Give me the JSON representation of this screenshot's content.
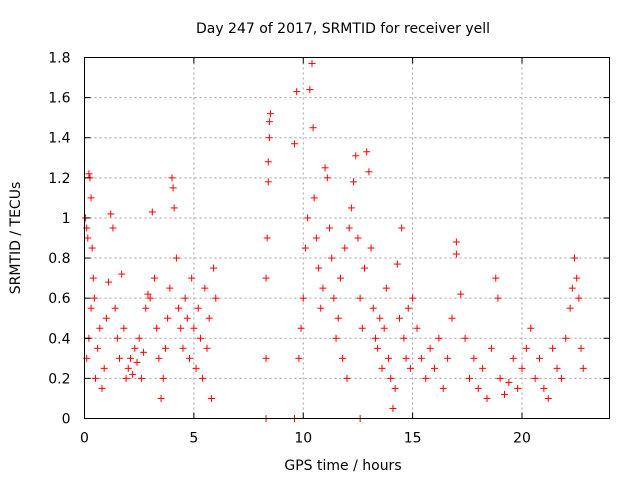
{
  "chart_data": {
    "type": "scatter",
    "title": "Day 247 of 2017, SRMTID for receiver yell",
    "xlabel": "GPS time / hours",
    "ylabel": "SRMTID / TECUs",
    "xlim": [
      0,
      24
    ],
    "ylim": [
      0,
      1.8
    ],
    "grid": true,
    "marker": "+",
    "color": "#ff0000",
    "xticks": [
      0,
      5,
      10,
      15,
      20
    ],
    "xtick_labels": [
      "0",
      "5",
      "10",
      "15",
      "20"
    ],
    "yticks": [
      0,
      0.2,
      0.4,
      0.6,
      0.8,
      1,
      1.2,
      1.4,
      1.6,
      1.8
    ],
    "ytick_labels": [
      "0",
      "0.2",
      "0.4",
      "0.6",
      "0.8",
      "1",
      "1.2",
      "1.4",
      "1.6",
      "1.8"
    ],
    "series": [
      {
        "name": "SRMTID",
        "points": [
          [
            0.05,
            1.0
          ],
          [
            0.1,
            0.95
          ],
          [
            0.15,
            0.9
          ],
          [
            0.2,
            1.22
          ],
          [
            0.25,
            1.2
          ],
          [
            0.3,
            1.1
          ],
          [
            0.35,
            0.85
          ],
          [
            0.4,
            0.7
          ],
          [
            0.45,
            0.6
          ],
          [
            0.1,
            0.3
          ],
          [
            0.2,
            0.4
          ],
          [
            0.3,
            0.55
          ],
          [
            0.5,
            0.2
          ],
          [
            0.6,
            0.35
          ],
          [
            0.7,
            0.45
          ],
          [
            0.8,
            0.15
          ],
          [
            0.9,
            0.25
          ],
          [
            1.0,
            0.5
          ],
          [
            1.1,
            0.68
          ],
          [
            1.2,
            1.02
          ],
          [
            1.3,
            0.95
          ],
          [
            1.4,
            0.55
          ],
          [
            1.5,
            0.4
          ],
          [
            1.6,
            0.3
          ],
          [
            1.7,
            0.72
          ],
          [
            1.8,
            0.45
          ],
          [
            1.9,
            0.2
          ],
          [
            2.0,
            0.25
          ],
          [
            2.1,
            0.3
          ],
          [
            2.2,
            0.22
          ],
          [
            2.3,
            0.35
          ],
          [
            2.4,
            0.28
          ],
          [
            2.5,
            0.4
          ],
          [
            2.6,
            0.2
          ],
          [
            2.7,
            0.33
          ],
          [
            2.8,
            0.55
          ],
          [
            2.9,
            0.62
          ],
          [
            3.0,
            0.6
          ],
          [
            3.1,
            1.03
          ],
          [
            3.2,
            0.7
          ],
          [
            3.3,
            0.45
          ],
          [
            3.4,
            0.3
          ],
          [
            3.5,
            0.1
          ],
          [
            3.6,
            0.2
          ],
          [
            3.7,
            0.35
          ],
          [
            3.8,
            0.5
          ],
          [
            3.9,
            0.65
          ],
          [
            4.0,
            1.2
          ],
          [
            4.05,
            1.15
          ],
          [
            4.1,
            1.05
          ],
          [
            4.2,
            0.8
          ],
          [
            4.3,
            0.55
          ],
          [
            4.4,
            0.45
          ],
          [
            4.5,
            0.35
          ],
          [
            4.6,
            0.6
          ],
          [
            4.7,
            0.5
          ],
          [
            4.8,
            0.3
          ],
          [
            4.9,
            0.7
          ],
          [
            5.0,
            0.45
          ],
          [
            5.1,
            0.25
          ],
          [
            5.2,
            0.55
          ],
          [
            5.3,
            0.4
          ],
          [
            5.4,
            0.2
          ],
          [
            5.5,
            0.65
          ],
          [
            5.6,
            0.35
          ],
          [
            5.7,
            0.5
          ],
          [
            5.8,
            0.1
          ],
          [
            5.9,
            0.75
          ],
          [
            6.0,
            0.6
          ],
          [
            8.3,
            0.3
          ],
          [
            8.3,
            0.7
          ],
          [
            8.35,
            0.9
          ],
          [
            8.4,
            1.18
          ],
          [
            8.4,
            1.28
          ],
          [
            8.45,
            1.4
          ],
          [
            8.45,
            1.48
          ],
          [
            8.5,
            1.52
          ],
          [
            8.3,
            0.0
          ],
          [
            9.6,
            0.0
          ],
          [
            12.6,
            0.0
          ],
          [
            9.6,
            1.37
          ],
          [
            9.7,
            1.63
          ],
          [
            9.8,
            0.3
          ],
          [
            9.9,
            0.45
          ],
          [
            10.0,
            0.6
          ],
          [
            10.1,
            0.85
          ],
          [
            10.2,
            1.0
          ],
          [
            10.3,
            1.64
          ],
          [
            10.4,
            1.77
          ],
          [
            10.45,
            1.45
          ],
          [
            10.5,
            1.1
          ],
          [
            10.6,
            0.9
          ],
          [
            10.7,
            0.75
          ],
          [
            10.8,
            0.55
          ],
          [
            10.9,
            0.65
          ],
          [
            11.0,
            1.25
          ],
          [
            11.1,
            1.2
          ],
          [
            11.2,
            0.95
          ],
          [
            11.3,
            0.8
          ],
          [
            11.4,
            0.6
          ],
          [
            11.5,
            0.4
          ],
          [
            11.6,
            0.5
          ],
          [
            11.7,
            0.7
          ],
          [
            11.8,
            0.3
          ],
          [
            11.9,
            0.85
          ],
          [
            12.0,
            0.2
          ],
          [
            12.1,
            0.95
          ],
          [
            12.2,
            1.05
          ],
          [
            12.3,
            1.18
          ],
          [
            12.4,
            1.31
          ],
          [
            12.5,
            0.9
          ],
          [
            12.6,
            0.6
          ],
          [
            12.7,
            0.45
          ],
          [
            12.8,
            0.75
          ],
          [
            12.9,
            1.33
          ],
          [
            13.0,
            1.23
          ],
          [
            13.1,
            0.85
          ],
          [
            13.2,
            0.55
          ],
          [
            13.3,
            0.4
          ],
          [
            13.4,
            0.35
          ],
          [
            13.5,
            0.5
          ],
          [
            13.6,
            0.25
          ],
          [
            13.7,
            0.45
          ],
          [
            13.8,
            0.65
          ],
          [
            13.9,
            0.3
          ],
          [
            14.0,
            0.2
          ],
          [
            14.1,
            0.05
          ],
          [
            14.2,
            0.15
          ],
          [
            14.3,
            0.77
          ],
          [
            14.4,
            0.5
          ],
          [
            14.5,
            0.95
          ],
          [
            14.6,
            0.4
          ],
          [
            14.7,
            0.3
          ],
          [
            14.8,
            0.55
          ],
          [
            14.9,
            0.25
          ],
          [
            15.0,
            0.6
          ],
          [
            15.2,
            0.45
          ],
          [
            15.4,
            0.3
          ],
          [
            15.6,
            0.2
          ],
          [
            15.8,
            0.35
          ],
          [
            16.0,
            0.25
          ],
          [
            16.2,
            0.4
          ],
          [
            16.4,
            0.15
          ],
          [
            16.6,
            0.3
          ],
          [
            16.8,
            0.5
          ],
          [
            17.0,
            0.88
          ],
          [
            17.0,
            0.82
          ],
          [
            17.2,
            0.62
          ],
          [
            17.4,
            0.4
          ],
          [
            17.6,
            0.2
          ],
          [
            17.8,
            0.3
          ],
          [
            18.0,
            0.15
          ],
          [
            18.2,
            0.25
          ],
          [
            18.4,
            0.1
          ],
          [
            18.6,
            0.35
          ],
          [
            18.8,
            0.7
          ],
          [
            18.9,
            0.6
          ],
          [
            19.0,
            0.2
          ],
          [
            19.2,
            0.12
          ],
          [
            19.4,
            0.18
          ],
          [
            19.6,
            0.3
          ],
          [
            19.8,
            0.15
          ],
          [
            20.0,
            0.25
          ],
          [
            20.2,
            0.35
          ],
          [
            20.4,
            0.45
          ],
          [
            20.6,
            0.2
          ],
          [
            20.8,
            0.3
          ],
          [
            21.0,
            0.15
          ],
          [
            21.2,
            0.1
          ],
          [
            21.4,
            0.35
          ],
          [
            21.6,
            0.25
          ],
          [
            21.8,
            0.2
          ],
          [
            22.0,
            0.4
          ],
          [
            22.2,
            0.55
          ],
          [
            22.3,
            0.65
          ],
          [
            22.4,
            0.8
          ],
          [
            22.5,
            0.7
          ],
          [
            22.6,
            0.6
          ],
          [
            22.7,
            0.35
          ],
          [
            22.8,
            0.25
          ]
        ]
      }
    ]
  }
}
